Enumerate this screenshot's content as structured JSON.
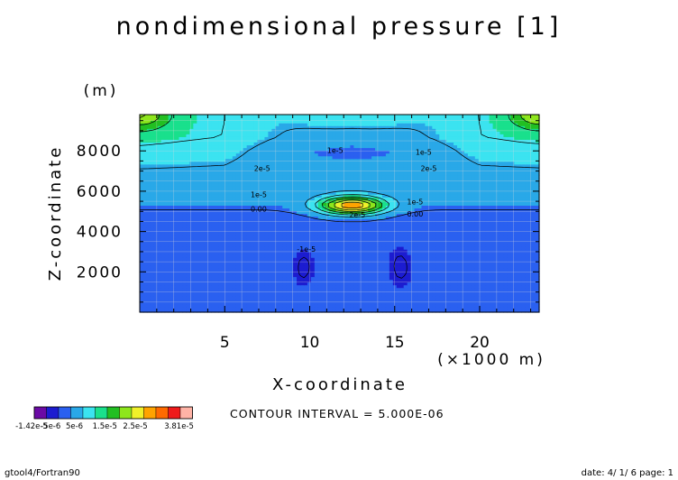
{
  "title": "nondimensional pressure [1]",
  "footer_left": "gtool4/Fortran90",
  "footer_right": "date: 4/ 1/ 6 page: 1",
  "contour_interval_text": "CONTOUR INTERVAL = 5.000E-06",
  "colors": {
    "levels": [
      "#6b0aa5",
      "#1c1cd0",
      "#2a60f0",
      "#29a8e8",
      "#3be3f0",
      "#19e08c",
      "#22bf22",
      "#8ee61c",
      "#f0f02a",
      "#ffa300",
      "#ff6a00",
      "#ef1b1b",
      "#ffb3a6"
    ],
    "grid": "#d9d9d9"
  },
  "colorbar": {
    "labels": [
      "-1.42e-5",
      "-5e-6",
      "5e-6",
      "1.5e-5",
      "2.5e-5",
      "3.81e-5"
    ]
  },
  "chart_data": {
    "type": "heatmap",
    "title": "nondimensional pressure [1]",
    "xlabel": "X-coordinate",
    "xunit": "(×1000 m)",
    "ylabel": "Z-coordinate",
    "yunit": "(m)",
    "xlim": [
      0,
      23.5
    ],
    "ylim": [
      0,
      9800
    ],
    "xticks": [
      5,
      10,
      15,
      20
    ],
    "yticks": [
      2000,
      4000,
      6000,
      8000
    ],
    "contour_interval": 5e-06,
    "value_range": [
      -1.42e-05,
      3.81e-05
    ],
    "contour_labels": [
      {
        "text": "1e-5",
        "x": 11.5,
        "y": 7900
      },
      {
        "text": "1e-5",
        "x": 16.7,
        "y": 7800
      },
      {
        "text": "2e-5",
        "x": 7.2,
        "y": 7000
      },
      {
        "text": "2e-5",
        "x": 17.0,
        "y": 7000
      },
      {
        "text": "1e-5",
        "x": 7.0,
        "y": 5700
      },
      {
        "text": "0.00",
        "x": 7.0,
        "y": 5000
      },
      {
        "text": "1e-5",
        "x": 16.2,
        "y": 5350
      },
      {
        "text": "0.00",
        "x": 16.2,
        "y": 4750
      },
      {
        "text": "2e-5",
        "x": 12.8,
        "y": 4700
      },
      {
        "text": "-1e-5",
        "x": 9.8,
        "y": 3000
      }
    ]
  }
}
